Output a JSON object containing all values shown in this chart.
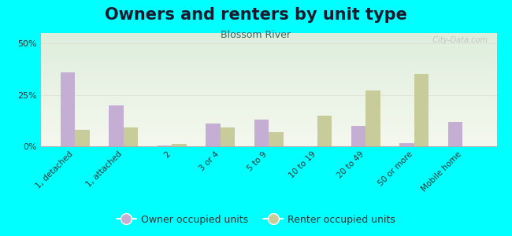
{
  "title": "Owners and renters by unit type",
  "subtitle": "Blossom River",
  "categories": [
    "1, detached",
    "1, attached",
    "2",
    "3 or 4",
    "5 to 9",
    "10 to 19",
    "20 to 49",
    "50 or more",
    "Mobile home"
  ],
  "owner_values": [
    36,
    20,
    0.5,
    11,
    13,
    0,
    10,
    1.5,
    12
  ],
  "renter_values": [
    8,
    9,
    1,
    9,
    7,
    15,
    27,
    35,
    0
  ],
  "owner_color": "#c4aed4",
  "renter_color": "#c8cc9a",
  "ylim": [
    0,
    55
  ],
  "yticks": [
    0,
    25,
    50
  ],
  "ytick_labels": [
    "0%",
    "25%",
    "50%"
  ],
  "plot_bg_top": "#f5f8ee",
  "plot_bg_bottom": "#deeedd",
  "outer_bg": "#00ffff",
  "bar_width": 0.3,
  "title_fontsize": 15,
  "subtitle_fontsize": 9,
  "legend_fontsize": 9,
  "watermark": "  City-Data.com"
}
